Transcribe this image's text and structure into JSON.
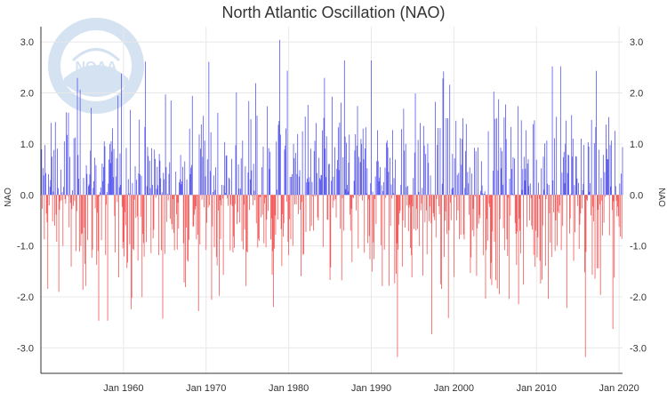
{
  "title": "North Atlantic Oscillation (NAO)",
  "logo_text": "NOAA",
  "colors": {
    "positive": "#5555ee",
    "negative": "#f25555",
    "grid": "#e8e8e8",
    "axis": "#333333"
  },
  "chart_data": {
    "type": "bar",
    "title": "North Atlantic Oscillation (NAO)",
    "ylabel": "NAO",
    "ylabel_right": "NAO",
    "ylim": [
      -3.5,
      3.3
    ],
    "y_ticks": [
      3.0,
      2.0,
      1.0,
      0.0,
      -1.0,
      -2.0,
      -3.0
    ],
    "y_tick_labels": [
      "3.0",
      "2.0",
      "1.0",
      "0.0",
      "-1.0",
      "-2.0",
      "-3.0"
    ],
    "x_range": [
      "Jan 1950",
      "Jun 2020"
    ],
    "x_ticks": [
      "Jan 1960",
      "Jan 1970",
      "Jan 1980",
      "Jan 1990",
      "Jan 2000",
      "Jan 2010",
      "Jan 2020"
    ],
    "grid": true,
    "frequency": "monthly",
    "series_note_positive_blue_negative_red": true,
    "peaks": [
      {
        "date": "1978-12",
        "value": 3.04
      },
      {
        "date": "1993-03",
        "value": -3.18
      },
      {
        "date": "2015-12",
        "value": -3.18
      },
      {
        "date": "1957-01",
        "value": -2.47
      },
      {
        "date": "1958-02",
        "value": -2.47
      },
      {
        "date": "1986-10",
        "value": 2.64
      },
      {
        "date": "1990-01",
        "value": 2.64
      },
      {
        "date": "2011-12",
        "value": 2.52
      },
      {
        "date": "2012-12",
        "value": 2.52
      },
      {
        "date": "2019-04",
        "value": -2.63
      },
      {
        "date": "1997-05",
        "value": -2.73
      },
      {
        "date": "1978-03",
        "value": -2.2
      },
      {
        "date": "1969-02",
        "value": -2.28
      }
    ]
  }
}
